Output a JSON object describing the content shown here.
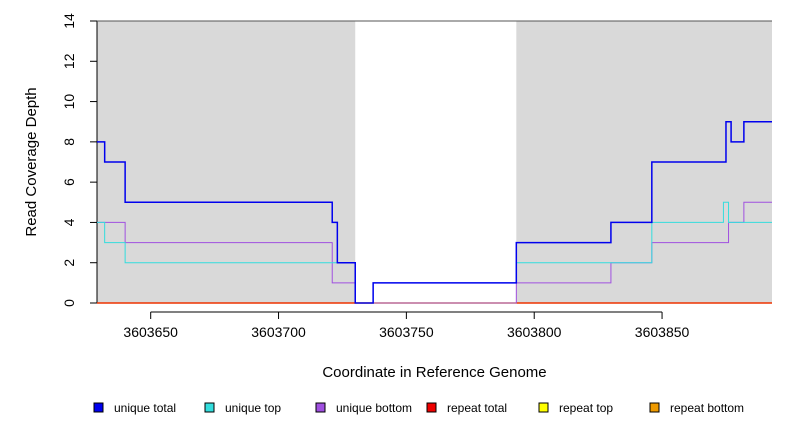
{
  "chart_data": {
    "type": "line",
    "style": "step",
    "title": "",
    "xlabel": "Coordinate in Reference Genome",
    "ylabel": "Read Coverage Depth",
    "xlim": [
      3603629,
      3603893
    ],
    "ylim": [
      0,
      14
    ],
    "x_ticks": [
      3603650,
      3603700,
      3603750,
      3603800,
      3603850
    ],
    "y_ticks": [
      0,
      2,
      4,
      6,
      8,
      10,
      12,
      14
    ],
    "shaded_regions": [
      {
        "x0": 3603629,
        "x1": 3603730,
        "color": "#d9d9d9"
      },
      {
        "x0": 3603793,
        "x1": 3603893,
        "color": "#d9d9d9"
      }
    ],
    "series": [
      {
        "name": "unique total",
        "color": "#0000ee",
        "width": 1.5,
        "points": [
          [
            3603629,
            8
          ],
          [
            3603632,
            7
          ],
          [
            3603640,
            5
          ],
          [
            3603721,
            4
          ],
          [
            3603723,
            2
          ],
          [
            3603730,
            0
          ],
          [
            3603737,
            1
          ],
          [
            3603793,
            3
          ],
          [
            3603830,
            4
          ],
          [
            3603846,
            7
          ],
          [
            3603875,
            9
          ],
          [
            3603877,
            8
          ],
          [
            3603882,
            9
          ],
          [
            3603893,
            9
          ]
        ]
      },
      {
        "name": "unique top",
        "color": "#33dddd",
        "width": 1,
        "points": [
          [
            3603629,
            4
          ],
          [
            3603632,
            3
          ],
          [
            3603640,
            2
          ],
          [
            3603721,
            2
          ],
          [
            3603723,
            2
          ],
          [
            3603730,
            0
          ],
          [
            3603737,
            1
          ],
          [
            3603793,
            2
          ],
          [
            3603846,
            4
          ],
          [
            3603874,
            5
          ],
          [
            3603876,
            4
          ],
          [
            3603893,
            4
          ]
        ]
      },
      {
        "name": "unique bottom",
        "color": "#a050e0",
        "width": 1,
        "points": [
          [
            3603629,
            4
          ],
          [
            3603640,
            3
          ],
          [
            3603721,
            1
          ],
          [
            3603730,
            0
          ],
          [
            3603793,
            1
          ],
          [
            3603830,
            2
          ],
          [
            3603846,
            3
          ],
          [
            3603876,
            4
          ],
          [
            3603882,
            5
          ],
          [
            3603893,
            5
          ]
        ]
      },
      {
        "name": "repeat total",
        "color": "#ee0000",
        "width": 1,
        "points": [
          [
            3603629,
            0
          ],
          [
            3603893,
            0
          ]
        ]
      },
      {
        "name": "repeat top",
        "color": "#ffff00",
        "width": 1,
        "points": [
          [
            3603629,
            0
          ],
          [
            3603893,
            0
          ]
        ]
      },
      {
        "name": "repeat bottom",
        "color": "#ee9a00",
        "width": 1.5,
        "points": [
          [
            3603629,
            0
          ],
          [
            3603893,
            0
          ]
        ]
      }
    ],
    "legend": {
      "placement": "bottom",
      "items": [
        {
          "label": "unique total",
          "color": "#0000ee"
        },
        {
          "label": "unique top",
          "color": "#33dddd"
        },
        {
          "label": "unique bottom",
          "color": "#a050e0"
        },
        {
          "label": "repeat total",
          "color": "#ee0000"
        },
        {
          "label": "repeat top",
          "color": "#ffff00"
        },
        {
          "label": "repeat bottom",
          "color": "#ee9a00"
        }
      ]
    }
  }
}
